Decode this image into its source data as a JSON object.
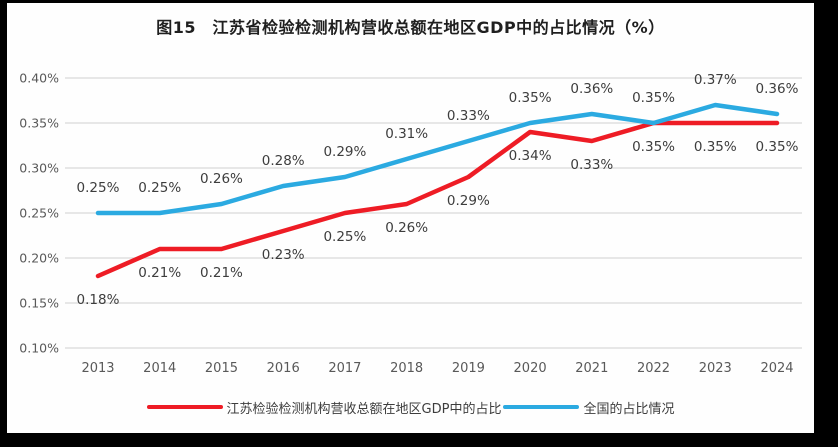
{
  "chart_data": {
    "type": "line",
    "title": "图15　江苏省检验检测机构营收总额在地区GDP中的占比情况（%）",
    "categories": [
      "2013",
      "2014",
      "2015",
      "2016",
      "2017",
      "2018",
      "2019",
      "2020",
      "2021",
      "2022",
      "2023",
      "2024"
    ],
    "series": [
      {
        "name": "江苏检验检测机构营收总额在地区GDP中的占比",
        "color": "#ee1c25",
        "label_position": "below",
        "values": [
          0.18,
          0.21,
          0.21,
          0.23,
          0.25,
          0.26,
          0.29,
          0.34,
          0.33,
          0.35,
          0.35,
          0.35
        ],
        "labels": [
          "0.18%",
          "0.21%",
          "0.21%",
          "0.23%",
          "0.25%",
          "0.26%",
          "0.29%",
          "0.34%",
          "0.33%",
          "0.35%",
          "0.35%",
          "0.35%"
        ]
      },
      {
        "name": "全国的占比情况",
        "color": "#2baae1",
        "label_position": "above",
        "values": [
          0.25,
          0.25,
          0.26,
          0.28,
          0.29,
          0.31,
          0.33,
          0.35,
          0.36,
          0.35,
          0.37,
          0.36
        ],
        "labels": [
          "0.25%",
          "0.25%",
          "0.26%",
          "0.28%",
          "0.29%",
          "0.31%",
          "0.33%",
          "0.35%",
          "0.36%",
          "0.35%",
          "0.37%",
          "0.36%"
        ]
      }
    ],
    "xlabel": "",
    "ylabel": "",
    "ylim": [
      0.1,
      0.4
    ],
    "yticks": [
      "0.10%",
      "0.15%",
      "0.20%",
      "0.25%",
      "0.30%",
      "0.35%",
      "0.40%"
    ],
    "grid": "horizontal",
    "legend_position": "bottom",
    "colors": {
      "gridline": "#d9d9d9",
      "axis_label": "#595959",
      "data_label": "#3d3d3d",
      "title": "#1f1f1f"
    }
  }
}
